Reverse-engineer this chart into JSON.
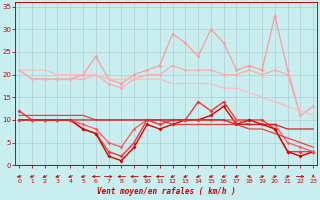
{
  "xlabel": "Vent moyen/en rafales ( km/h )",
  "bg_color": "#c8eef0",
  "grid_color": "#b0cccf",
  "ylim": [
    0,
    36
  ],
  "xlim": [
    -0.3,
    23.3
  ],
  "yticks": [
    0,
    5,
    10,
    15,
    20,
    25,
    30,
    35
  ],
  "xticks": [
    0,
    1,
    2,
    3,
    4,
    5,
    6,
    7,
    8,
    9,
    10,
    11,
    12,
    13,
    14,
    15,
    16,
    17,
    18,
    19,
    20,
    21,
    22,
    23
  ],
  "series": [
    {
      "name": "rafales_max",
      "color": "#ff9999",
      "alpha": 1.0,
      "lw": 0.9,
      "marker": "D",
      "ms": 1.8,
      "data": [
        21,
        19,
        19,
        19,
        19,
        20,
        24,
        19,
        18,
        20,
        21,
        22,
        29,
        27,
        24,
        30,
        27,
        21,
        22,
        21,
        33,
        21,
        11,
        13
      ]
    },
    {
      "name": "rafales_moy",
      "color": "#ffaaaa",
      "alpha": 1.0,
      "lw": 0.9,
      "marker": "D",
      "ms": 1.8,
      "data": [
        21,
        19,
        19,
        19,
        19,
        19,
        20,
        18,
        17,
        19,
        20,
        20,
        22,
        21,
        21,
        21,
        20,
        20,
        21,
        20,
        21,
        20,
        11,
        13
      ]
    },
    {
      "name": "trend_rafales",
      "color": "#ffbbbb",
      "alpha": 1.0,
      "lw": 0.9,
      "marker": null,
      "ms": 0,
      "data": [
        21,
        21,
        21,
        20,
        20,
        20,
        20,
        19,
        19,
        19,
        19,
        19,
        18,
        18,
        18,
        18,
        17,
        17,
        16,
        15,
        14,
        13,
        12,
        11
      ]
    },
    {
      "name": "vent_max",
      "color": "#ff3333",
      "alpha": 1.0,
      "lw": 1.0,
      "marker": "D",
      "ms": 2.0,
      "data": [
        12,
        10,
        10,
        10,
        10,
        8,
        7,
        3,
        2,
        5,
        10,
        9,
        10,
        10,
        14,
        12,
        14,
        10,
        10,
        10,
        8,
        3,
        3,
        3
      ]
    },
    {
      "name": "vent_moy",
      "color": "#dd0000",
      "alpha": 1.0,
      "lw": 1.0,
      "marker": "D",
      "ms": 2.0,
      "data": [
        10,
        10,
        10,
        10,
        10,
        8,
        7,
        2,
        1,
        4,
        9,
        8,
        9,
        10,
        10,
        11,
        13,
        9,
        10,
        9,
        8,
        3,
        2,
        3
      ]
    },
    {
      "name": "vent_min",
      "color": "#ff5555",
      "alpha": 1.0,
      "lw": 0.9,
      "marker": "D",
      "ms": 1.8,
      "data": [
        10,
        10,
        10,
        10,
        10,
        9,
        8,
        5,
        4,
        8,
        10,
        10,
        10,
        10,
        10,
        10,
        10,
        10,
        9,
        9,
        9,
        5,
        4,
        3
      ]
    },
    {
      "name": "trend_vent1",
      "color": "#cc1111",
      "alpha": 0.9,
      "lw": 0.9,
      "marker": null,
      "ms": 0,
      "data": [
        10,
        10,
        10,
        10,
        10,
        10,
        10,
        10,
        10,
        10,
        10,
        10,
        10,
        10,
        10,
        10,
        10,
        9,
        9,
        9,
        9,
        8,
        8,
        8
      ]
    },
    {
      "name": "trend_vent2",
      "color": "#ee2222",
      "alpha": 0.85,
      "lw": 0.9,
      "marker": null,
      "ms": 0,
      "data": [
        11,
        11,
        11,
        11,
        11,
        11,
        10,
        10,
        10,
        10,
        10,
        10,
        9,
        9,
        9,
        9,
        9,
        9,
        8,
        8,
        7,
        6,
        5,
        4
      ]
    }
  ],
  "arrows_angles_deg": [
    225,
    225,
    225,
    225,
    225,
    225,
    270,
    90,
    270,
    270,
    270,
    270,
    225,
    225,
    225,
    225,
    225,
    225,
    315,
    45,
    45,
    45,
    90,
    0
  ],
  "arrow_color": "#cc0000"
}
